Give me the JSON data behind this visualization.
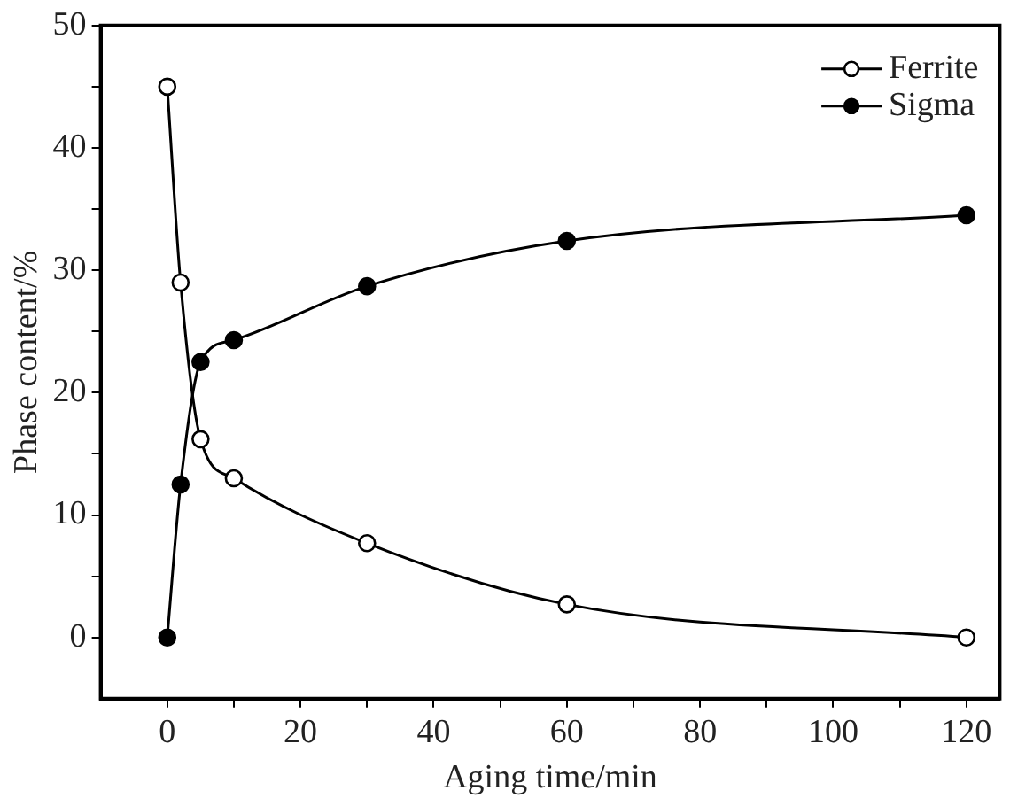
{
  "chart_data": {
    "type": "line",
    "xlabel": "Aging time/min",
    "ylabel": "Phase content/%",
    "x": [
      0,
      2,
      5,
      10,
      30,
      60,
      120
    ],
    "series": [
      {
        "name": "Ferrite",
        "color": "#000000",
        "values": [
          45,
          29,
          16.2,
          13,
          7.7,
          2.7,
          0
        ]
      },
      {
        "name": "Sigma",
        "color": "#000000",
        "values": [
          0,
          12.5,
          22.5,
          24.3,
          28.7,
          32.4,
          34.5
        ]
      }
    ],
    "xlim": [
      -10,
      125
    ],
    "xticks": [
      0,
      {
        "value": 10,
        "label": null
      },
      20,
      {
        "value": 30,
        "label": null
      },
      40,
      {
        "value": 50,
        "label": null
      },
      60,
      {
        "value": 70,
        "label": null
      },
      80,
      {
        "value": 90,
        "label": null
      },
      100,
      {
        "value": 110,
        "label": null
      },
      120
    ],
    "ylim": [
      -5,
      50
    ],
    "yticks": [
      0,
      {
        "value": 5,
        "label": null
      },
      10,
      {
        "value": 15,
        "label": null
      },
      20,
      {
        "value": 25,
        "label": null
      },
      30,
      {
        "value": 35,
        "label": null
      },
      40,
      {
        "value": 45,
        "label": null
      },
      50
    ],
    "grid": false,
    "legend": "top right",
    "marker": "circle",
    "line_style": "solid"
  }
}
